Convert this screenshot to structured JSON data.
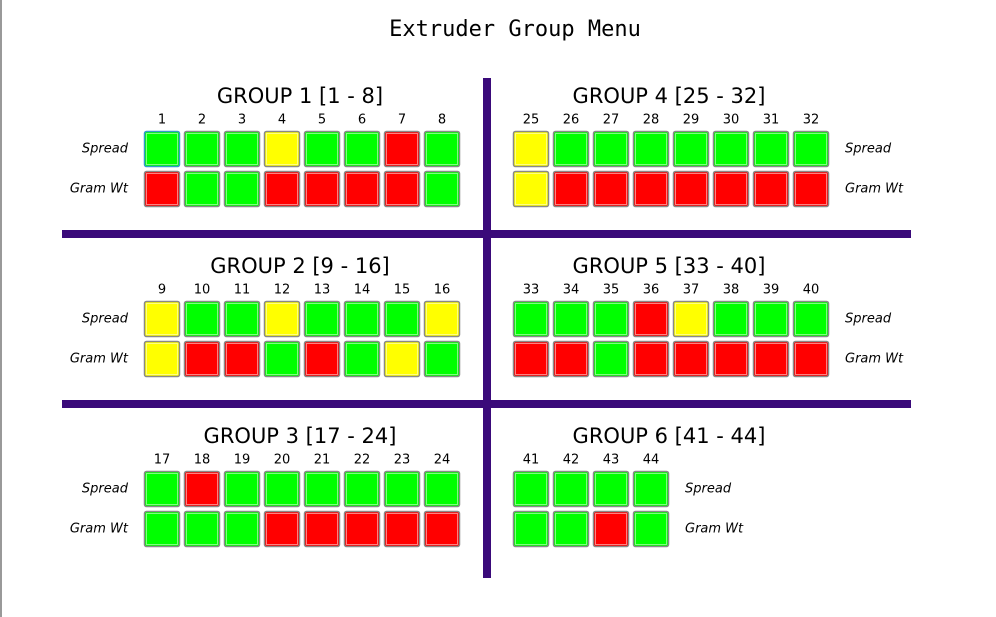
{
  "title": "Extruder Group Menu",
  "groups": [
    {
      "title": "GROUP 1  [1 - 8]",
      "numbers": [
        "1",
        "2",
        "3",
        "4",
        "5",
        "6",
        "7",
        "8"
      ],
      "spread_label": "Spread",
      "gram_label": "Gram Wt",
      "spread": [
        "#00ff00",
        "#00ff00",
        "#00ff00",
        "#ffff00",
        "#00ff00",
        "#00ff00",
        "#ff0000",
        "#00ff00"
      ],
      "gram": [
        "#ff0000",
        "#00ff00",
        "#00ff00",
        "#ff0000",
        "#ff0000",
        "#ff0000",
        "#ff0000",
        "#00ff00"
      ]
    },
    {
      "title": "GROUP 2  [9 - 16]",
      "numbers": [
        "9",
        "10",
        "11",
        "12",
        "13",
        "14",
        "15",
        "16"
      ],
      "spread_label": "Spread",
      "gram_label": "Gram Wt",
      "spread": [
        "#ffff00",
        "#00ff00",
        "#00ff00",
        "#ffff00",
        "#00ff00",
        "#00ff00",
        "#00ff00",
        "#ffff00"
      ],
      "gram": [
        "#ffff00",
        "#ff0000",
        "#ff0000",
        "#00ff00",
        "#ff0000",
        "#00ff00",
        "#ffff00",
        "#00ff00"
      ]
    },
    {
      "title": "GROUP 3  [17 - 24]",
      "numbers": [
        "17",
        "18",
        "19",
        "20",
        "21",
        "22",
        "23",
        "24"
      ],
      "spread_label": "Spread",
      "gram_label": "Gram Wt",
      "spread": [
        "#00ff00",
        "#ff0000",
        "#00ff00",
        "#00ff00",
        "#00ff00",
        "#00ff00",
        "#00ff00",
        "#00ff00"
      ],
      "gram": [
        "#00ff00",
        "#00ff00",
        "#00ff00",
        "#ff0000",
        "#ff0000",
        "#ff0000",
        "#ff0000",
        "#ff0000"
      ]
    },
    {
      "title": "GROUP 4  [25 - 32]",
      "numbers": [
        "25",
        "26",
        "27",
        "28",
        "29",
        "30",
        "31",
        "32"
      ],
      "spread_label": "Spread",
      "gram_label": "Gram Wt",
      "spread": [
        "#ffff00",
        "#00ff00",
        "#00ff00",
        "#00ff00",
        "#00ff00",
        "#00ff00",
        "#00ff00",
        "#00ff00"
      ],
      "gram": [
        "#ffff00",
        "#ff0000",
        "#ff0000",
        "#ff0000",
        "#ff0000",
        "#ff0000",
        "#ff0000",
        "#ff0000"
      ]
    },
    {
      "title": "GROUP 5  [33 - 40]",
      "numbers": [
        "33",
        "34",
        "35",
        "36",
        "37",
        "38",
        "39",
        "40"
      ],
      "spread_label": "Spread",
      "gram_label": "Gram Wt",
      "spread": [
        "#00ff00",
        "#00ff00",
        "#00ff00",
        "#ff0000",
        "#ffff00",
        "#00ff00",
        "#00ff00",
        "#00ff00"
      ],
      "gram": [
        "#ff0000",
        "#ff0000",
        "#00ff00",
        "#ff0000",
        "#ff0000",
        "#ff0000",
        "#ff0000",
        "#ff0000"
      ]
    },
    {
      "title": "GROUP 6  [41 - 44]",
      "numbers": [
        "41",
        "42",
        "43",
        "44"
      ],
      "spread_label": "Spread",
      "gram_label": "Gram Wt",
      "spread": [
        "#00ff00",
        "#00ff00",
        "#00ff00",
        "#00ff00"
      ],
      "gram": [
        "#00ff00",
        "#00ff00",
        "#ff0000",
        "#00ff00"
      ]
    }
  ]
}
